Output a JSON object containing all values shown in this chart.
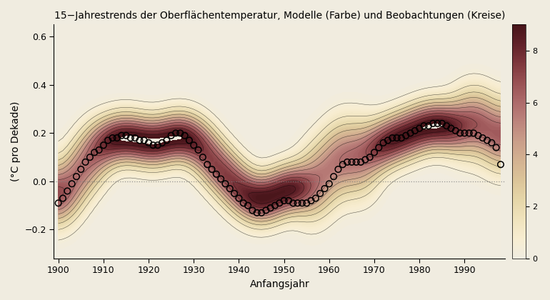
{
  "title": "15−Jahrestrends der Oberflächentemperatur, Modelle (Farbe) und Beobachtungen (Kreise)",
  "xlabel": "Anfangsjahr",
  "ylabel": "(°C pro Dekade)",
  "xlim": [
    1899,
    1999
  ],
  "ylim": [
    -0.32,
    0.65
  ],
  "yticks": [
    -0.2,
    0.0,
    0.2,
    0.4,
    0.6
  ],
  "xticks": [
    1900,
    1910,
    1920,
    1930,
    1940,
    1950,
    1960,
    1970,
    1980,
    1990
  ],
  "bg_color": "#f0ece0",
  "colorbar_ticks": [
    0,
    2,
    4,
    6,
    8
  ],
  "dotted_line_y": 0.0,
  "obs_years": [
    1900,
    1901,
    1902,
    1903,
    1904,
    1905,
    1906,
    1907,
    1908,
    1909,
    1910,
    1911,
    1912,
    1913,
    1914,
    1915,
    1916,
    1917,
    1918,
    1919,
    1920,
    1921,
    1922,
    1923,
    1924,
    1925,
    1926,
    1927,
    1928,
    1929,
    1930,
    1931,
    1932,
    1933,
    1934,
    1935,
    1936,
    1937,
    1938,
    1939,
    1940,
    1941,
    1942,
    1943,
    1944,
    1945,
    1946,
    1947,
    1948,
    1949,
    1950,
    1951,
    1952,
    1953,
    1954,
    1955,
    1956,
    1957,
    1958,
    1959,
    1960,
    1961,
    1962,
    1963,
    1964,
    1965,
    1966,
    1967,
    1968,
    1969,
    1970,
    1971,
    1972,
    1973,
    1974,
    1975,
    1976,
    1977,
    1978,
    1979,
    1980,
    1981,
    1982,
    1983,
    1984,
    1985,
    1986,
    1987,
    1988,
    1989,
    1990,
    1991,
    1992,
    1993,
    1994,
    1995,
    1996,
    1997,
    1998
  ],
  "obs_values": [
    -0.09,
    -0.07,
    -0.04,
    -0.01,
    0.02,
    0.05,
    0.08,
    0.1,
    0.12,
    0.13,
    0.15,
    0.17,
    0.18,
    0.18,
    0.19,
    0.19,
    0.18,
    0.18,
    0.17,
    0.17,
    0.16,
    0.15,
    0.15,
    0.16,
    0.17,
    0.19,
    0.2,
    0.2,
    0.19,
    0.17,
    0.15,
    0.13,
    0.1,
    0.07,
    0.05,
    0.03,
    0.01,
    -0.01,
    -0.03,
    -0.05,
    -0.07,
    -0.09,
    -0.1,
    -0.12,
    -0.13,
    -0.13,
    -0.12,
    -0.11,
    -0.1,
    -0.09,
    -0.08,
    -0.08,
    -0.09,
    -0.09,
    -0.09,
    -0.09,
    -0.08,
    -0.07,
    -0.05,
    -0.03,
    -0.01,
    0.02,
    0.05,
    0.07,
    0.08,
    0.08,
    0.08,
    0.08,
    0.09,
    0.1,
    0.12,
    0.14,
    0.16,
    0.17,
    0.18,
    0.18,
    0.18,
    0.19,
    0.2,
    0.21,
    0.22,
    0.23,
    0.23,
    0.24,
    0.24,
    0.24,
    0.23,
    0.22,
    0.21,
    0.2,
    0.2,
    0.2,
    0.2,
    0.19,
    0.18,
    0.17,
    0.16,
    0.14,
    0.07
  ]
}
